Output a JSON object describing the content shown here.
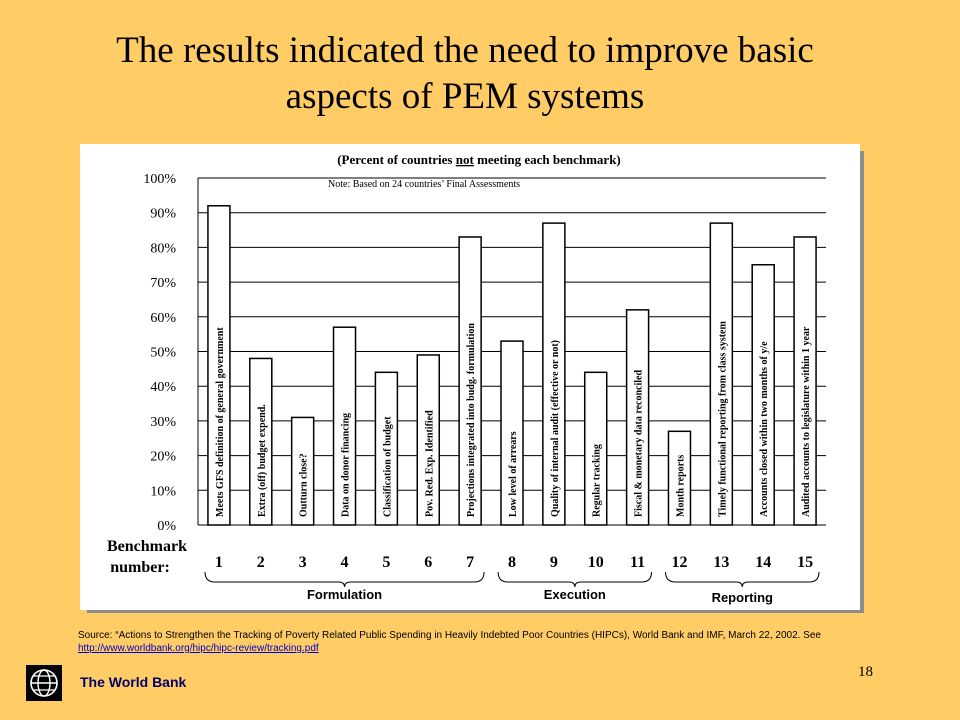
{
  "slide": {
    "title_line1": "The results indicated the need to improve basic",
    "title_line2": "aspects of PEM systems",
    "source_text": "Source: “Actions to Strengthen the Tracking of Poverty Related Public Spending in Heavily Indebted Poor Countries (HIPCs), World Bank and IMF, March 22, 2002. See ",
    "source_link": "http://www.worldbank.org/hipc/hipc-review/tracking.pdf",
    "org_name": "The World Bank",
    "page_number": "18",
    "logo_icon": "world-bank-globe-icon"
  },
  "chart_data": {
    "type": "bar",
    "title_prefix": "(Percent of countries ",
    "title_emphasis": "not",
    "title_suffix": " meeting each benchmark)",
    "note": "Note: Based on 24 countries’ Final Assessments",
    "xlabel_line1": "Benchmark",
    "xlabel_line2": "number:",
    "ylim": [
      0,
      100
    ],
    "y_ticks": [
      "0%",
      "10%",
      "20%",
      "30%",
      "40%",
      "50%",
      "60%",
      "70%",
      "80%",
      "90%",
      "100%"
    ],
    "grid": true,
    "bar_color": "#FFFFFF",
    "categories": [
      "1",
      "2",
      "3",
      "4",
      "5",
      "6",
      "7",
      "8",
      "9",
      "10",
      "11",
      "12",
      "13",
      "14",
      "15"
    ],
    "bar_labels": [
      "Meets GFS definition of general government",
      "Extra (off) budget expend.",
      "Outturn close?",
      "Data on donor financing",
      "Classification of budget",
      "Pov. Red. Exp. Identified",
      "Projections integrated into budg. formulation",
      "Low level of arrears",
      "Quality of internal audit (effective or not)",
      "Regular tracking",
      "Fiscal & monetary data reconciled",
      "Month reports",
      "Timely functional reporting from class system",
      "Accounts closed within two months of y/e",
      "Audited accounts to legislature within 1 year"
    ],
    "values": [
      92,
      48,
      31,
      57,
      44,
      49,
      83,
      53,
      87,
      44,
      62,
      27,
      87,
      75,
      83
    ],
    "groups": [
      {
        "name": "Formulation",
        "from": 1,
        "to": 7
      },
      {
        "name": "Execution",
        "from": 8,
        "to": 11
      },
      {
        "name": "Reporting",
        "from": 12,
        "to": 15
      }
    ]
  }
}
